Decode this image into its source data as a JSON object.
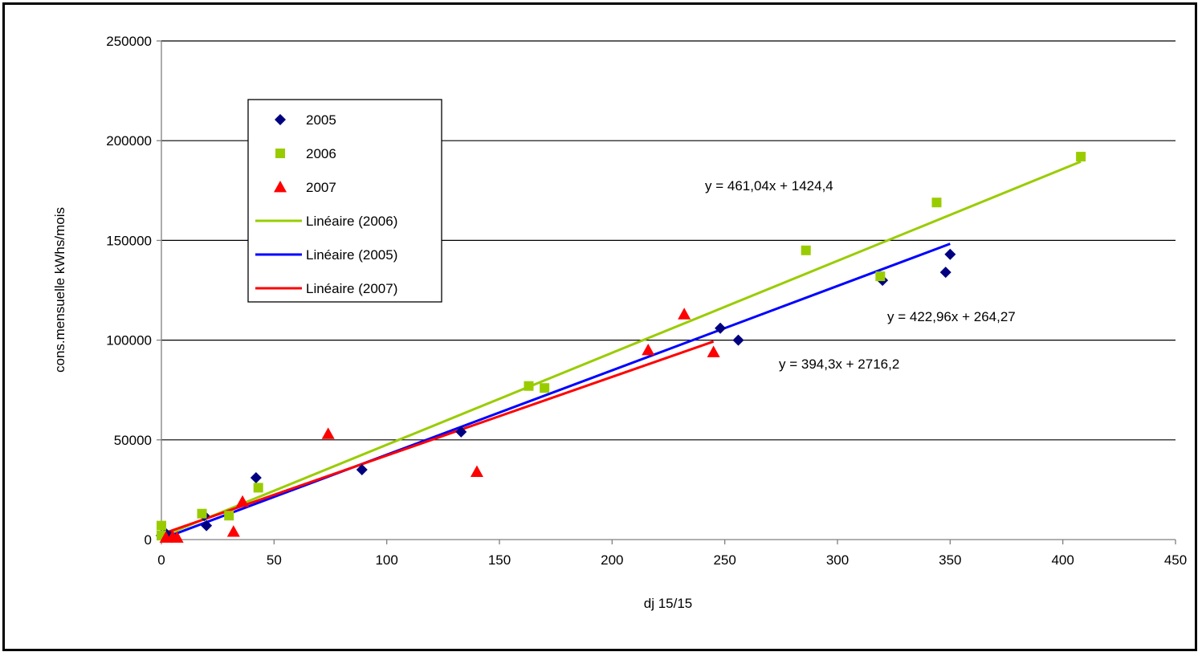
{
  "chart_data": {
    "type": "scatter",
    "title": "",
    "xlabel": "dj 15/15",
    "ylabel": "cons.mensuelle kWhs/mois",
    "xlim": [
      0,
      450
    ],
    "ylim": [
      0,
      250000
    ],
    "xticks": [
      0,
      50,
      100,
      150,
      200,
      250,
      300,
      350,
      400,
      450
    ],
    "yticks": [
      0,
      50000,
      100000,
      150000,
      200000,
      250000
    ],
    "grid": "horizontal",
    "legend_position": "top-left",
    "series": [
      {
        "name": "2005",
        "marker": "diamond",
        "color": "#000080",
        "points": [
          [
            0,
            2000
          ],
          [
            2,
            3000
          ],
          [
            4,
            1500
          ],
          [
            19,
            12000
          ],
          [
            20,
            7000
          ],
          [
            42,
            31000
          ],
          [
            89,
            35000
          ],
          [
            133,
            54000
          ],
          [
            248,
            106000
          ],
          [
            256,
            100000
          ],
          [
            320,
            130000
          ],
          [
            348,
            134000
          ],
          [
            350,
            143000
          ]
        ]
      },
      {
        "name": "2006",
        "marker": "square",
        "color": "#99CC00",
        "points": [
          [
            0,
            7000
          ],
          [
            0,
            2000
          ],
          [
            18,
            13000
          ],
          [
            30,
            12000
          ],
          [
            43,
            26000
          ],
          [
            163,
            77000
          ],
          [
            170,
            76000
          ],
          [
            286,
            145000
          ],
          [
            319,
            132000
          ],
          [
            344,
            169000
          ],
          [
            408,
            192000
          ]
        ]
      },
      {
        "name": "2007",
        "marker": "triangle",
        "color": "#FF0000",
        "points": [
          [
            2,
            1000
          ],
          [
            5,
            1500
          ],
          [
            7,
            1000
          ],
          [
            32,
            4000
          ],
          [
            36,
            19000
          ],
          [
            74,
            53000
          ],
          [
            140,
            34000
          ],
          [
            216,
            95000
          ],
          [
            232,
            113000
          ],
          [
            245,
            94000
          ]
        ]
      }
    ],
    "trendlines": [
      {
        "name": "Linéaire (2006)",
        "color": "#99CC00",
        "slope": 461.04,
        "intercept": 1424.4,
        "x_range": [
          0,
          408
        ],
        "equation": "y = 461,04x + 1424,4"
      },
      {
        "name": "Linéaire (2005)",
        "color": "#0000FF",
        "slope": 422.96,
        "intercept": 264.27,
        "x_range": [
          0,
          350
        ],
        "equation": "y = 422,96x + 264,27"
      },
      {
        "name": "Linéaire (2007)",
        "color": "#FF0000",
        "slope": 394.3,
        "intercept": 2716.2,
        "x_range": [
          0,
          245
        ],
        "equation": "y = 394,3x + 2716,2"
      }
    ],
    "legend": [
      {
        "label": "2005",
        "kind": "diamond",
        "color": "#000080"
      },
      {
        "label": "2006",
        "kind": "square",
        "color": "#99CC00"
      },
      {
        "label": "2007",
        "kind": "triangle",
        "color": "#FF0000"
      },
      {
        "label": "Linéaire (2006)",
        "kind": "line",
        "color": "#99CC00"
      },
      {
        "label": "Linéaire (2005)",
        "kind": "line",
        "color": "#0000FF"
      },
      {
        "label": "Linéaire (2007)",
        "kind": "line",
        "color": "#FF0000"
      }
    ]
  }
}
